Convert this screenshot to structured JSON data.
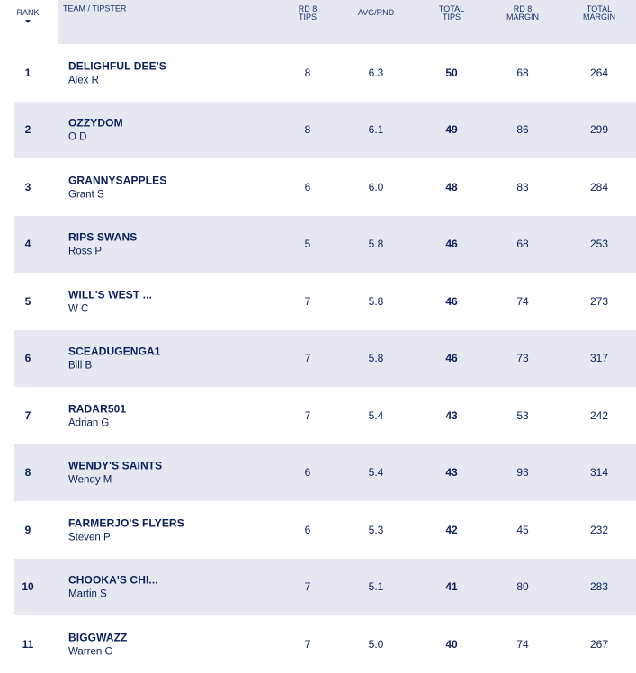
{
  "headers": {
    "rank": "RANK",
    "team": "TEAM / TIPSTER",
    "rd8_tips_1": "RD 8",
    "rd8_tips_2": "TIPS",
    "avg": "AVG/RND",
    "total_tips_1": "TOTAL",
    "total_tips_2": "TIPS",
    "rd8_margin_1": "RD 8",
    "rd8_margin_2": "MARGIN",
    "total_margin_1": "TOTAL",
    "total_margin_2": "MARGIN"
  },
  "rows": [
    {
      "rank": "1",
      "team": "DELIGHFUL DEE'S",
      "tipster": "Alex R",
      "rd8": "8",
      "avg": "6.3",
      "total": "50",
      "rd8_margin": "68",
      "total_margin": "264"
    },
    {
      "rank": "2",
      "team": "OZZYDOM",
      "tipster": "O D",
      "rd8": "8",
      "avg": "6.1",
      "total": "49",
      "rd8_margin": "86",
      "total_margin": "299"
    },
    {
      "rank": "3",
      "team": "GRANNYSAPPLES",
      "tipster": "Grant S",
      "rd8": "6",
      "avg": "6.0",
      "total": "48",
      "rd8_margin": "83",
      "total_margin": "284"
    },
    {
      "rank": "4",
      "team": "RIPS SWANS",
      "tipster": "Ross P",
      "rd8": "5",
      "avg": "5.8",
      "total": "46",
      "rd8_margin": "68",
      "total_margin": "253"
    },
    {
      "rank": "5",
      "team": "WILL'S WEST ...",
      "tipster": "W C",
      "rd8": "7",
      "avg": "5.8",
      "total": "46",
      "rd8_margin": "74",
      "total_margin": "273"
    },
    {
      "rank": "6",
      "team": "SCEADUGENGA1",
      "tipster": "Bill B",
      "rd8": "7",
      "avg": "5.8",
      "total": "46",
      "rd8_margin": "73",
      "total_margin": "317"
    },
    {
      "rank": "7",
      "team": "RADAR501",
      "tipster": "Adrian G",
      "rd8": "7",
      "avg": "5.4",
      "total": "43",
      "rd8_margin": "53",
      "total_margin": "242"
    },
    {
      "rank": "8",
      "team": "WENDY'S SAINTS",
      "tipster": "Wendy M",
      "rd8": "6",
      "avg": "5.4",
      "total": "43",
      "rd8_margin": "93",
      "total_margin": "314"
    },
    {
      "rank": "9",
      "team": "FARMERJO'S FLYERS",
      "tipster": "Steven P",
      "rd8": "6",
      "avg": "5.3",
      "total": "42",
      "rd8_margin": "45",
      "total_margin": "232"
    },
    {
      "rank": "10",
      "team": "CHOOKA'S CHI...",
      "tipster": "Martin S",
      "rd8": "7",
      "avg": "5.1",
      "total": "41",
      "rd8_margin": "80",
      "total_margin": "283"
    },
    {
      "rank": "11",
      "team": "BIGGWAZZ",
      "tipster": "Warren G",
      "rd8": "7",
      "avg": "5.0",
      "total": "40",
      "rd8_margin": "74",
      "total_margin": "267"
    }
  ]
}
